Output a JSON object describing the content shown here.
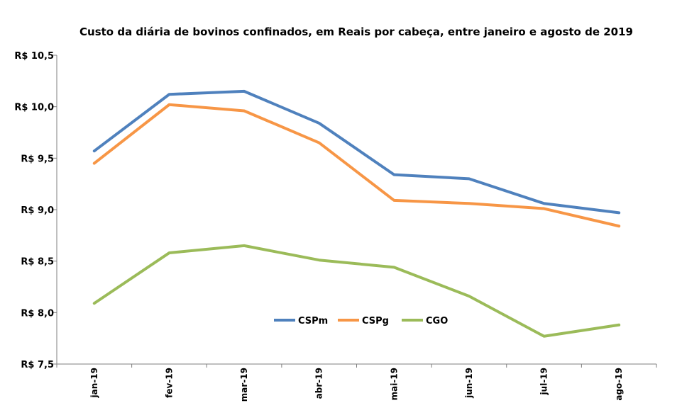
{
  "chart_data": {
    "type": "line",
    "title": "Custo da diária de bovinos confinados, em Reais por cabeça, entre  janeiro e agosto de 2019",
    "xlabel": "",
    "ylabel": "",
    "categories": [
      "jan-19",
      "fev-19",
      "mar-19",
      "abr-19",
      "mai-19",
      "jun-19",
      "jul-19",
      "ago-19"
    ],
    "ylim": [
      7.5,
      10.5
    ],
    "yticks": [
      7.5,
      8.0,
      8.5,
      9.0,
      9.5,
      10.0,
      10.5
    ],
    "ytick_labels": [
      "R$ 7,5",
      "R$ 8,0",
      "R$ 8,5",
      "R$ 9,0",
      "R$ 9,5",
      "R$ 10,0",
      "R$ 10,5"
    ],
    "grid": false,
    "legend": "center",
    "series": [
      {
        "name": "CSPm",
        "color": "#4f81bd",
        "values": [
          9.57,
          10.12,
          10.15,
          9.84,
          9.34,
          9.3,
          9.06,
          8.97
        ]
      },
      {
        "name": "CSPg",
        "color": "#f79646",
        "values": [
          9.45,
          10.02,
          9.96,
          9.65,
          9.09,
          9.06,
          9.01,
          8.84
        ]
      },
      {
        "name": "CGO",
        "color": "#9bbb59",
        "values": [
          8.09,
          8.58,
          8.65,
          8.51,
          8.44,
          8.16,
          7.77,
          7.88
        ]
      }
    ]
  }
}
